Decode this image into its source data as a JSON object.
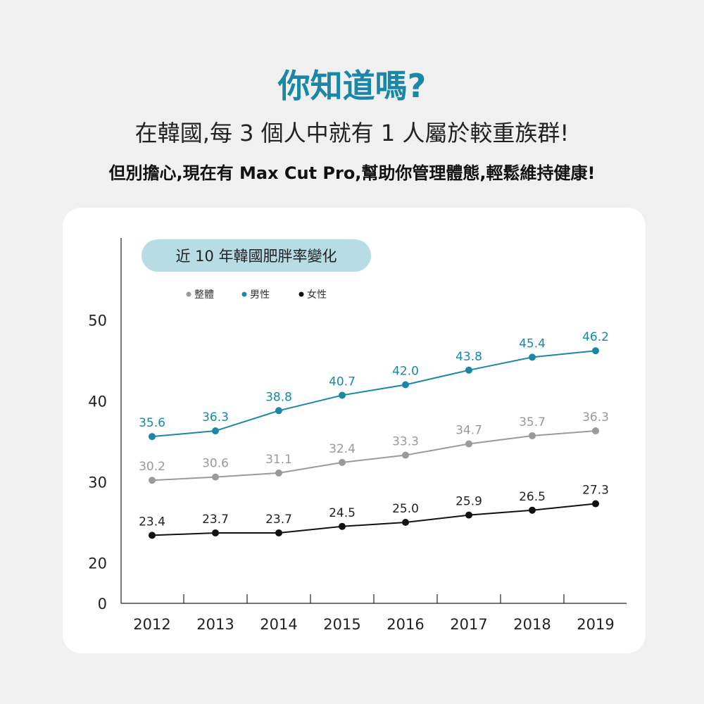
{
  "title": "你知道嗎?",
  "subtitle": "在韓國,每 3 個人中就有 1 人屬於較重族群!",
  "tagline": "但別擔心,現在有 Max Cut Pro,幫助你管理體態,輕鬆維持健康!",
  "colors": {
    "accent": "#1b87a6",
    "overall": "#9a9a9a",
    "male": "#1b87a6",
    "female": "#111111",
    "pill": "#b7dce6"
  },
  "chart_data": {
    "type": "line",
    "title": "近 10 年韓國肥胖率變化",
    "categories": [
      "2012",
      "2013",
      "2014",
      "2015",
      "2016",
      "2017",
      "2018",
      "2019"
    ],
    "y_ticks": [
      "0",
      "20",
      "30",
      "40",
      "50"
    ],
    "series": [
      {
        "name": "整體",
        "values": [
          30.2,
          30.6,
          31.1,
          32.4,
          33.3,
          34.7,
          35.7,
          36.3
        ],
        "labels": [
          "30.2",
          "30.6",
          "31.1",
          "32.4",
          "33.3",
          "34.7",
          "35.7",
          "36.3"
        ]
      },
      {
        "name": "男性",
        "values": [
          35.6,
          36.3,
          38.8,
          40.7,
          42.0,
          43.8,
          45.4,
          46.2
        ],
        "labels": [
          "35.6",
          "36.3",
          "38.8",
          "40.7",
          "42.0",
          "43.8",
          "45.4",
          "46.2"
        ]
      },
      {
        "name": "女性",
        "values": [
          23.4,
          23.7,
          23.7,
          24.5,
          25.0,
          25.9,
          26.5,
          27.3
        ],
        "labels": [
          "23.4",
          "23.7",
          "23.7",
          "24.5",
          "25.0",
          "25.9",
          "26.5",
          "27.3"
        ]
      }
    ],
    "legend_position": "top-left",
    "grid": false
  }
}
